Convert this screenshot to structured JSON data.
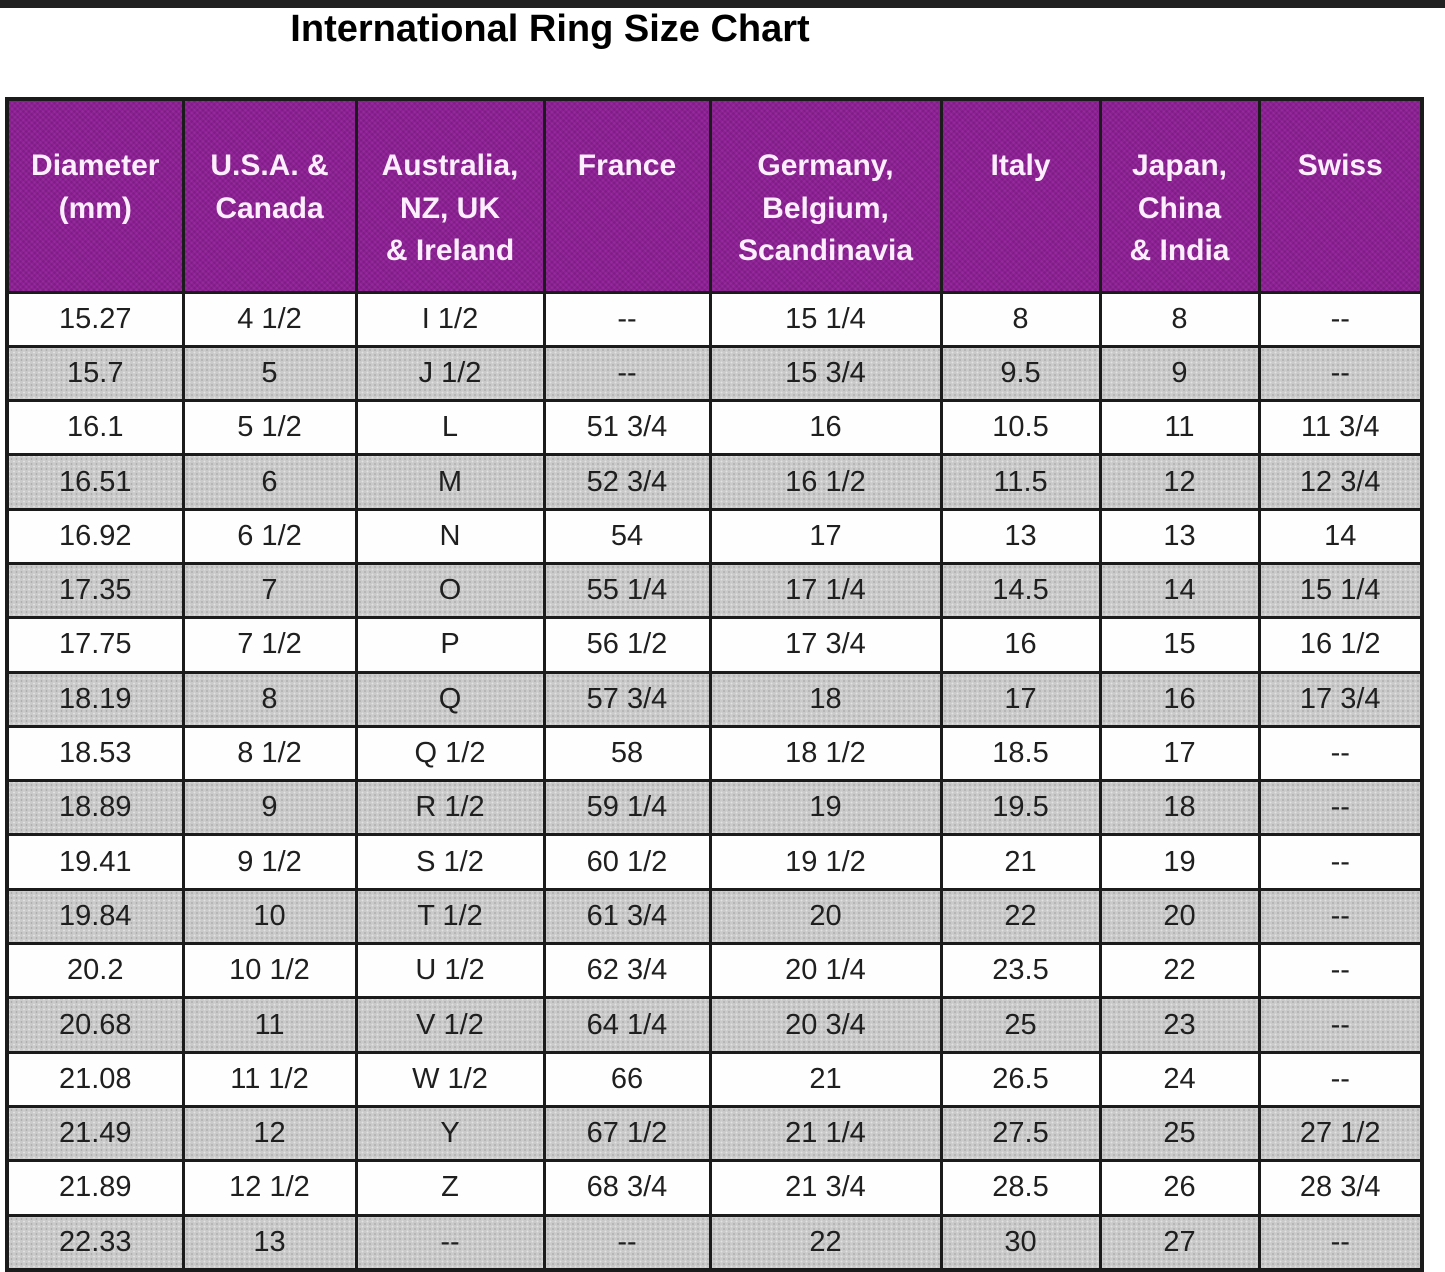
{
  "title": "International Ring Size Chart",
  "colors": {
    "header_bg": "#8e1f96",
    "header_text": "#fdeefd",
    "row_bg": "#fefefe",
    "row_alt_bg": "#cacaca",
    "border": "#1b1b1b",
    "cell_text": "#1f1f1f",
    "title_text": "#000000",
    "top_bar": "#212121"
  },
  "chart_data": {
    "type": "table",
    "title": "International Ring Size Chart",
    "columns": [
      {
        "key": "diameter-mm",
        "label_lines": [
          "Diameter",
          "(mm)"
        ]
      },
      {
        "key": "usa-canada",
        "label_lines": [
          "U.S.A. &",
          "Canada"
        ]
      },
      {
        "key": "australia-nz-uk-ireland",
        "label_lines": [
          "Australia,",
          "NZ, UK",
          "& Ireland"
        ]
      },
      {
        "key": "france",
        "label_lines": [
          "France"
        ]
      },
      {
        "key": "germany-belgium-scandinavia",
        "label_lines": [
          "Germany,",
          "Belgium,",
          "Scandinavia"
        ]
      },
      {
        "key": "italy",
        "label_lines": [
          "Italy"
        ]
      },
      {
        "key": "japan-china-india",
        "label_lines": [
          "Japan,",
          "China",
          "& India"
        ]
      },
      {
        "key": "swiss",
        "label_lines": [
          "Swiss"
        ]
      }
    ],
    "rows": [
      [
        "15.27",
        "4 1/2",
        "I 1/2",
        "--",
        "15 1/4",
        "8",
        "8",
        "--"
      ],
      [
        "15.7",
        "5",
        "J 1/2",
        "--",
        "15 3/4",
        "9.5",
        "9",
        "--"
      ],
      [
        "16.1",
        "5 1/2",
        "L",
        "51 3/4",
        "16",
        "10.5",
        "11",
        "11 3/4"
      ],
      [
        "16.51",
        "6",
        "M",
        "52 3/4",
        "16 1/2",
        "11.5",
        "12",
        "12 3/4"
      ],
      [
        "16.92",
        "6 1/2",
        "N",
        "54",
        "17",
        "13",
        "13",
        "14"
      ],
      [
        "17.35",
        "7",
        "O",
        "55 1/4",
        "17 1/4",
        "14.5",
        "14",
        "15 1/4"
      ],
      [
        "17.75",
        "7 1/2",
        "P",
        "56 1/2",
        "17 3/4",
        "16",
        "15",
        "16 1/2"
      ],
      [
        "18.19",
        "8",
        "Q",
        "57 3/4",
        "18",
        "17",
        "16",
        "17 3/4"
      ],
      [
        "18.53",
        "8 1/2",
        "Q 1/2",
        "58",
        "18 1/2",
        "18.5",
        "17",
        "--"
      ],
      [
        "18.89",
        "9",
        "R 1/2",
        "59 1/4",
        "19",
        "19.5",
        "18",
        "--"
      ],
      [
        "19.41",
        "9 1/2",
        "S 1/2",
        "60 1/2",
        "19 1/2",
        "21",
        "19",
        "--"
      ],
      [
        "19.84",
        "10",
        "T 1/2",
        "61 3/4",
        "20",
        "22",
        "20",
        "--"
      ],
      [
        "20.2",
        "10 1/2",
        "U 1/2",
        "62 3/4",
        "20 1/4",
        "23.5",
        "22",
        "--"
      ],
      [
        "20.68",
        "11",
        "V 1/2",
        "64 1/4",
        "20 3/4",
        "25",
        "23",
        "--"
      ],
      [
        "21.08",
        "11 1/2",
        "W 1/2",
        "66",
        "21",
        "26.5",
        "24",
        "--"
      ],
      [
        "21.49",
        "12",
        "Y",
        "67 1/2",
        "21 1/4",
        "27.5",
        "25",
        "27 1/2"
      ],
      [
        "21.89",
        "12 1/2",
        "Z",
        "68 3/4",
        "21 3/4",
        "28.5",
        "26",
        "28 3/4"
      ],
      [
        "22.33",
        "13",
        "--",
        "--",
        "22",
        "30",
        "27",
        "--"
      ]
    ],
    "layout": {
      "striping": "alternating white/gray rows, first data row white",
      "grid": "black grid lines on all cells",
      "header_position": "top, purple background, white bold text"
    }
  }
}
